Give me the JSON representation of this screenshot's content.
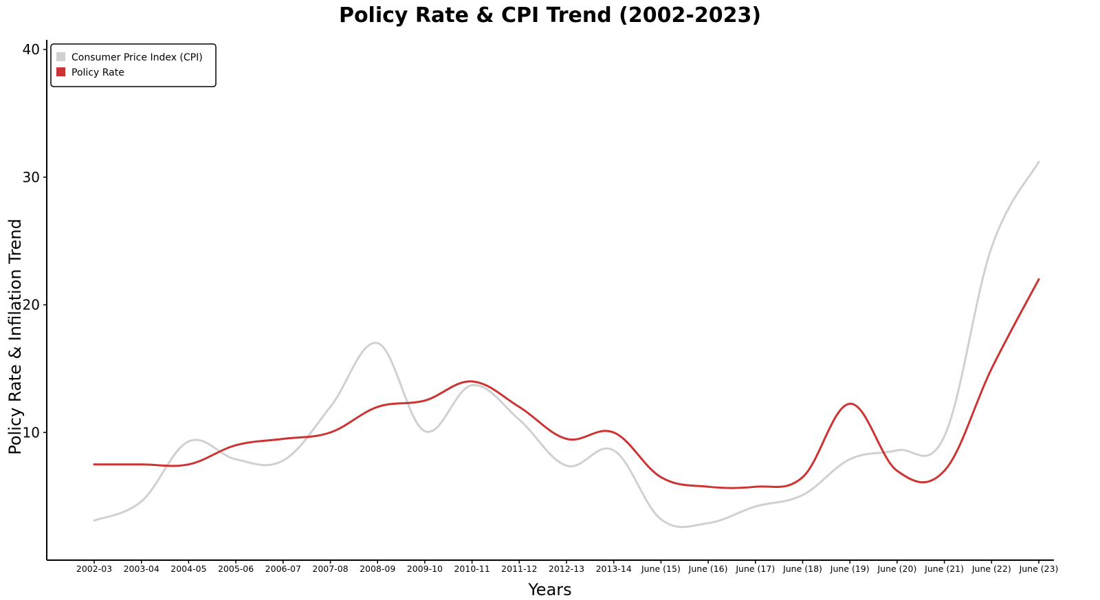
{
  "chart_data": {
    "type": "line",
    "title": "Policy Rate & CPI Trend (2002-2023)",
    "xlabel": "Years",
    "ylabel": "Policy Rate & Infilation Trend",
    "categories": [
      "2002-03",
      "2003-04",
      "2004-05",
      "2005-06",
      "2006-07",
      "2007-08",
      "2008-09",
      "2009-10",
      "2010-11",
      "2011-12",
      "2012-13",
      "2013-14",
      "June (15)",
      "June (16)",
      "June (17)",
      "June (18)",
      "June (19)",
      "June (20)",
      "June (21)",
      "June (22)",
      "June (23)"
    ],
    "yticks": [
      10,
      20,
      30,
      40
    ],
    "ylim": [
      0,
      40
    ],
    "legend_position": "top-left",
    "grid": false,
    "series": [
      {
        "name": "Consumer Price Index (CPI)",
        "color": "#d0d0d0",
        "values": [
          3.1,
          4.6,
          9.3,
          7.9,
          7.8,
          12.0,
          17.0,
          10.1,
          13.7,
          11.0,
          7.4,
          8.6,
          3.2,
          2.9,
          4.2,
          5.1,
          7.9,
          8.6,
          9.7,
          24.5,
          31.2
        ]
      },
      {
        "name": "Policy Rate",
        "color": "#cc3333",
        "values": [
          7.5,
          7.5,
          7.5,
          9.0,
          9.5,
          10.0,
          12.0,
          12.5,
          14.0,
          12.0,
          9.5,
          10.0,
          6.5,
          5.75,
          5.75,
          6.5,
          12.25,
          7.0,
          7.0,
          15.0,
          22.0
        ]
      }
    ]
  }
}
